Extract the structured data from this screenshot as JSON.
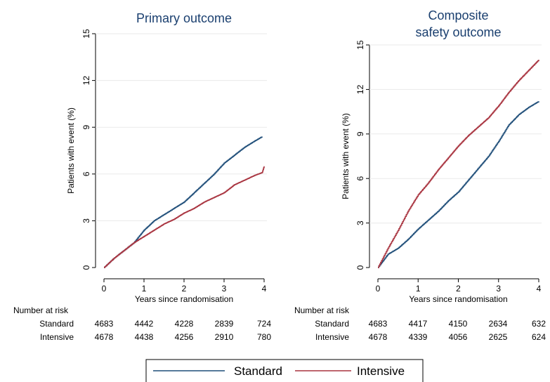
{
  "chart_data": [
    {
      "type": "line",
      "title": "Primary outcome",
      "xlabel": "Years since randomisation",
      "ylabel": "Patients with event (%)",
      "xlim": [
        0,
        4
      ],
      "ylim": [
        0,
        15
      ],
      "xticks": [
        0,
        1,
        2,
        3,
        4
      ],
      "yticks": [
        0,
        3,
        6,
        9,
        12,
        15
      ],
      "grid": "horizontal",
      "series": [
        {
          "name": "Standard",
          "color": "#1f4e79",
          "x": [
            0,
            0.25,
            0.5,
            0.75,
            1.0,
            1.25,
            1.5,
            1.75,
            2.0,
            2.25,
            2.5,
            2.75,
            3.0,
            3.25,
            3.5,
            3.75,
            3.95
          ],
          "y": [
            0,
            0.6,
            1.1,
            1.6,
            2.4,
            3.0,
            3.4,
            3.8,
            4.2,
            4.8,
            5.4,
            6.0,
            6.7,
            7.2,
            7.7,
            8.1,
            8.4
          ]
        },
        {
          "name": "Intensive",
          "color": "#a8323e",
          "x": [
            0,
            0.25,
            0.5,
            0.75,
            1.0,
            1.25,
            1.5,
            1.75,
            2.0,
            2.25,
            2.5,
            2.75,
            3.0,
            3.25,
            3.5,
            3.75,
            3.95,
            4.0
          ],
          "y": [
            0,
            0.6,
            1.1,
            1.6,
            2.0,
            2.4,
            2.8,
            3.1,
            3.5,
            3.8,
            4.2,
            4.5,
            4.8,
            5.3,
            5.6,
            5.9,
            6.1,
            6.5
          ]
        }
      ],
      "risk_table": {
        "header": "Number at risk",
        "rows": [
          {
            "label": "Standard",
            "values": [
              "4683",
              "4442",
              "4228",
              "2839",
              "724"
            ]
          },
          {
            "label": "Intensive",
            "values": [
              "4678",
              "4438",
              "4256",
              "2910",
              "780"
            ]
          }
        ]
      }
    },
    {
      "type": "line",
      "title": "Composite safety outcome",
      "title_lines": [
        "Composite",
        "safety outcome"
      ],
      "xlabel": "Years since randomisation",
      "ylabel": "Patients with event (%)",
      "xlim": [
        0,
        4
      ],
      "ylim": [
        0,
        15
      ],
      "xticks": [
        0,
        1,
        2,
        3,
        4
      ],
      "yticks": [
        0,
        3,
        6,
        9,
        12,
        15
      ],
      "grid": "horizontal",
      "series": [
        {
          "name": "Standard",
          "color": "#1f4e79",
          "x": [
            0,
            0.25,
            0.5,
            0.75,
            1.0,
            1.25,
            1.5,
            1.75,
            2.0,
            2.25,
            2.5,
            2.75,
            3.0,
            3.25,
            3.5,
            3.75,
            4.0
          ],
          "y": [
            0,
            0.9,
            1.3,
            1.9,
            2.6,
            3.2,
            3.8,
            4.5,
            5.1,
            5.9,
            6.7,
            7.5,
            8.5,
            9.6,
            10.3,
            10.8,
            11.2
          ]
        },
        {
          "name": "Intensive",
          "color": "#a8323e",
          "x": [
            0,
            0.25,
            0.5,
            0.75,
            1.0,
            1.25,
            1.5,
            1.75,
            2.0,
            2.25,
            2.5,
            2.75,
            3.0,
            3.25,
            3.5,
            3.75,
            4.0
          ],
          "y": [
            0,
            1.3,
            2.5,
            3.8,
            4.9,
            5.7,
            6.6,
            7.4,
            8.2,
            8.9,
            9.5,
            10.1,
            10.9,
            11.8,
            12.6,
            13.3,
            14.0
          ]
        }
      ],
      "risk_table": {
        "header": "Number at risk",
        "rows": [
          {
            "label": "Standard",
            "values": [
              "4683",
              "4417",
              "4150",
              "2634",
              "632"
            ]
          },
          {
            "label": "Intensive",
            "values": [
              "4678",
              "4339",
              "4056",
              "2625",
              "624"
            ]
          }
        ]
      }
    }
  ],
  "legend": {
    "placement": "bottom-center",
    "items": [
      {
        "label": "Standard",
        "color": "#1f4e79"
      },
      {
        "label": "Intensive",
        "color": "#a8323e"
      }
    ]
  }
}
